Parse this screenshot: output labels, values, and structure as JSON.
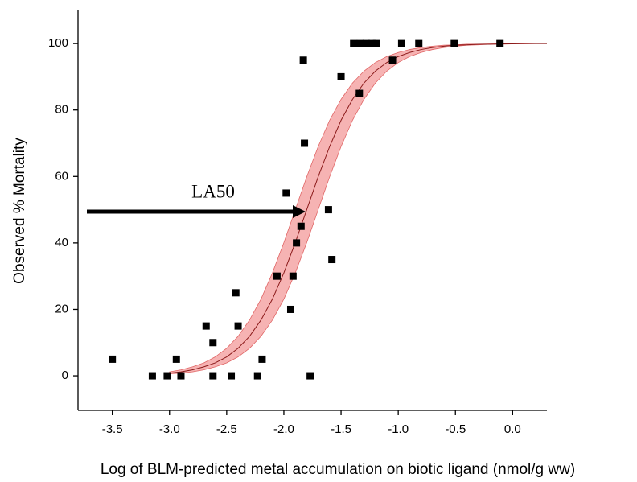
{
  "chart_data": {
    "type": "scatter",
    "xlabel": "Log of BLM-predicted metal accumulation on biotic ligand (nmol/g ww)",
    "ylabel": "Observed % Mortality",
    "annotation": "LA50",
    "marker_color": "#000000",
    "x": [
      -3.5,
      -3.15,
      -3.02,
      -2.94,
      -2.9,
      -2.68,
      -2.62,
      -2.62,
      -2.46,
      -2.42,
      -2.4,
      -2.23,
      -2.19,
      -2.06,
      -1.98,
      -1.94,
      -1.92,
      -1.89,
      -1.85,
      -1.83,
      -1.82,
      -1.77,
      -1.61,
      -1.58,
      -1.5,
      -1.39,
      -1.33,
      -1.28,
      -1.23,
      -1.19,
      -1.34,
      -1.05,
      -0.97,
      -0.82,
      -0.51,
      -0.11
    ],
    "values": [
      5,
      0,
      0,
      5,
      0,
      15,
      10,
      0,
      0,
      25,
      15,
      0,
      5,
      30,
      55,
      20,
      30,
      40,
      45,
      95,
      70,
      0,
      50,
      35,
      90,
      100,
      100,
      100,
      100,
      100,
      85,
      95,
      100,
      100,
      100,
      100
    ],
    "fit": {
      "color": "#8b1a1a",
      "band_color": "#f08080",
      "x": [
        -3.0,
        -2.9,
        -2.8,
        -2.7,
        -2.6,
        -2.5,
        -2.4,
        -2.3,
        -2.2,
        -2.1,
        -2.0,
        -1.9,
        -1.8,
        -1.7,
        -1.6,
        -1.5,
        -1.4,
        -1.3,
        -1.2,
        -1.1,
        -1.0,
        -0.9,
        -0.8,
        -0.7,
        -0.6,
        -0.5,
        -0.4,
        -0.3,
        -0.2,
        -0.1,
        0.0,
        0.1,
        0.2,
        0.3
      ],
      "values": [
        0.8,
        1.2,
        1.8,
        2.7,
        3.9,
        5.7,
        8.3,
        11.9,
        16.8,
        23.1,
        31.0,
        40.1,
        50,
        59.9,
        69.0,
        76.9,
        83.2,
        88.1,
        91.7,
        94.3,
        96.1,
        97.3,
        98.2,
        98.8,
        99.2,
        99.5,
        99.6,
        99.8,
        99.8,
        99.9,
        99.9,
        100,
        100,
        100
      ],
      "upper": [
        1.2,
        1.8,
        2.7,
        3.9,
        5.7,
        8.3,
        11.9,
        16.8,
        23.1,
        31.0,
        40.1,
        50,
        59.9,
        69.0,
        76.9,
        83.2,
        88.1,
        91.7,
        94.3,
        96.1,
        97.3,
        98.2,
        98.8,
        99.2,
        99.5,
        99.6,
        99.8,
        99.8,
        99.9,
        99.9,
        100,
        100,
        100,
        100
      ],
      "lower": [
        0.6,
        0.8,
        1.2,
        1.8,
        2.7,
        3.9,
        5.7,
        8.3,
        11.9,
        16.8,
        23.1,
        31.0,
        40.1,
        50,
        59.9,
        69.0,
        76.9,
        83.2,
        88.1,
        91.7,
        94.3,
        96.1,
        97.3,
        98.2,
        98.8,
        99.2,
        99.5,
        99.6,
        99.8,
        99.8,
        99.9,
        99.9,
        100,
        100
      ]
    },
    "xlim": [
      -3.8,
      0.3
    ],
    "ylim": [
      -10.4,
      110.2
    ],
    "xticks": [
      -3.5,
      {
        "value": -3,
        "label": "-3.0"
      },
      -2.5,
      {
        "value": -2,
        "label": "-2.0"
      },
      -1.5,
      {
        "value": -1,
        "label": "-1.0"
      },
      -0.5,
      {
        "value": 0,
        "label": "0.0"
      }
    ],
    "yticks": [
      0,
      20,
      40,
      60,
      80,
      100
    ],
    "grid": false
  }
}
